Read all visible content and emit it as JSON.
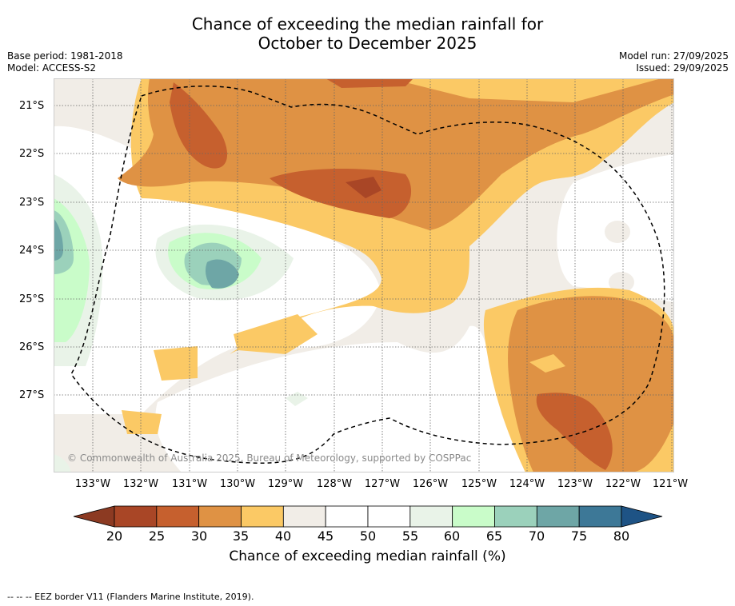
{
  "title": {
    "line1": "Chance of exceeding the median rainfall for",
    "line2": "October to December 2025"
  },
  "meta": {
    "base_period": "Base period: 1981-2018",
    "model": "Model: ACCESS-S2",
    "model_run": "Model run: 27/09/2025",
    "issued": "Issued: 29/09/2025"
  },
  "axes": {
    "lat_labels": [
      "21°S",
      "22°S",
      "23°S",
      "24°S",
      "25°S",
      "26°S",
      "27°S"
    ],
    "lon_labels": [
      "133°W",
      "132°W",
      "131°W",
      "130°W",
      "129°W",
      "128°W",
      "127°W",
      "126°W",
      "125°W",
      "124°W",
      "123°W",
      "122°W",
      "121°W"
    ]
  },
  "colorbar": {
    "ticks": [
      "20",
      "25",
      "30",
      "35",
      "40",
      "45",
      "50",
      "55",
      "60",
      "65",
      "70",
      "75",
      "80"
    ],
    "colors": [
      "#a94626",
      "#c6602e",
      "#df9244",
      "#fbc965",
      "#f1ede7",
      "#ffffff",
      "#ffffff",
      "#e9f3e8",
      "#c9fcc9",
      "#9bd1bb",
      "#6ea6a6",
      "#3d7897"
    ],
    "below_color": "#8c3a22",
    "above_color": "#1e5385",
    "label": "Chance of exceeding median rainfall (%)"
  },
  "credit": "© Commonwealth of Australia 2025, Bureau of Meteorology, supported by COSPPac",
  "footer": "-- -- -- EEZ border V11 (Flanders Marine Institute, 2019)."
}
